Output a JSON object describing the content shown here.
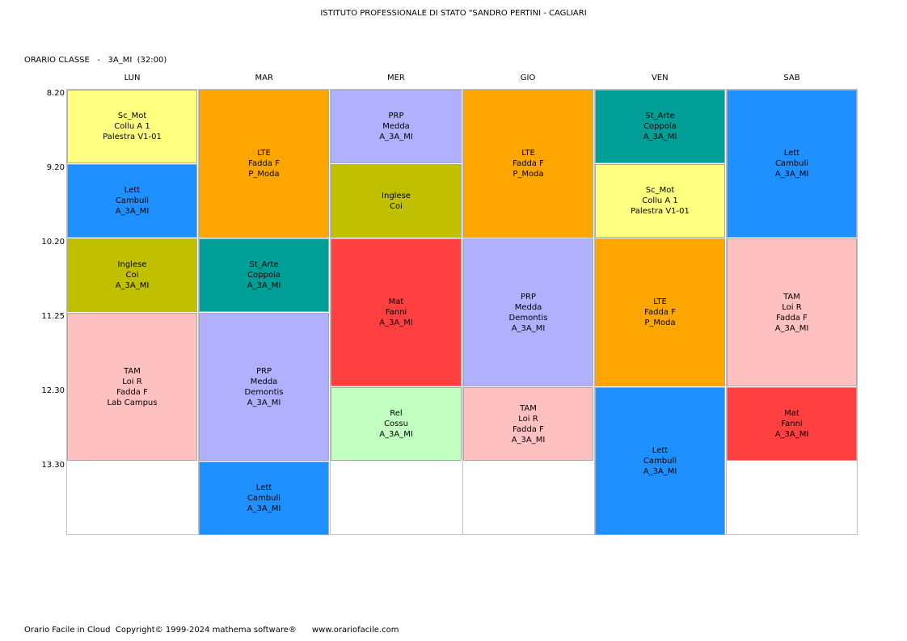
{
  "school_title": "ISTITUTO PROFESSIONALE DI STATO \"SANDRO PERTINI - CAGLIARI",
  "class_header": "ORARIO CLASSE   -   3A_MI  (32:00)",
  "days": [
    "LUN",
    "MAR",
    "MER",
    "GIO",
    "VEN",
    "SAB"
  ],
  "times": [
    "8.20",
    "9.20",
    "10.20",
    "11.25",
    "12.30",
    "13.30"
  ],
  "colors": {
    "Sc_Mot": "#ffff80",
    "Lett": "#1e90ff",
    "Inglese": "#c0c000",
    "TAM": "#ffc0c0",
    "LTE": "#ffa500",
    "St_Arte": "#009e96",
    "PRP": "#b0b0ff",
    "Mat": "#ff4040",
    "Rel": "#c0ffc0"
  },
  "lessons": [
    {
      "day": 0,
      "start": 0,
      "span": 1,
      "subject": "Sc_Mot",
      "lines": [
        "Sc_Mot",
        "Collu A 1",
        "Palestra V1-01"
      ]
    },
    {
      "day": 0,
      "start": 1,
      "span": 1,
      "subject": "Lett",
      "lines": [
        "Lett",
        "Cambuli",
        "A_3A_MI"
      ]
    },
    {
      "day": 0,
      "start": 2,
      "span": 1,
      "subject": "Inglese",
      "lines": [
        "Inglese",
        "Coi",
        "A_3A_MI"
      ]
    },
    {
      "day": 0,
      "start": 3,
      "span": 2,
      "subject": "TAM",
      "lines": [
        "TAM",
        "Loi R",
        "Fadda F",
        "Lab Campus"
      ]
    },
    {
      "day": 1,
      "start": 0,
      "span": 2,
      "subject": "LTE",
      "lines": [
        "LTE",
        "Fadda F",
        "P_Moda"
      ]
    },
    {
      "day": 1,
      "start": 2,
      "span": 1,
      "subject": "St_Arte",
      "lines": [
        "St_Arte",
        "Coppola",
        "A_3A_MI"
      ]
    },
    {
      "day": 1,
      "start": 3,
      "span": 2,
      "subject": "PRP",
      "lines": [
        "PRP",
        "Medda",
        "Demontis",
        "A_3A_MI"
      ]
    },
    {
      "day": 1,
      "start": 5,
      "span": 1,
      "subject": "Lett",
      "lines": [
        "Lett",
        "Cambuli",
        "A_3A_MI"
      ]
    },
    {
      "day": 2,
      "start": 0,
      "span": 1,
      "subject": "PRP",
      "lines": [
        "PRP",
        "Medda",
        "A_3A_MI"
      ]
    },
    {
      "day": 2,
      "start": 1,
      "span": 1,
      "subject": "Inglese",
      "lines": [
        "Inglese",
        "Coi"
      ]
    },
    {
      "day": 2,
      "start": 2,
      "span": 2,
      "subject": "Mat",
      "lines": [
        "Mat",
        "Fanni",
        "A_3A_MI"
      ]
    },
    {
      "day": 2,
      "start": 4,
      "span": 1,
      "subject": "Rel",
      "lines": [
        "Rel",
        "Cossu",
        "A_3A_MI"
      ]
    },
    {
      "day": 3,
      "start": 0,
      "span": 2,
      "subject": "LTE",
      "lines": [
        "LTE",
        "Fadda F",
        "P_Moda"
      ]
    },
    {
      "day": 3,
      "start": 2,
      "span": 2,
      "subject": "PRP",
      "lines": [
        "PRP",
        "Medda",
        "Demontis",
        "A_3A_MI"
      ]
    },
    {
      "day": 3,
      "start": 4,
      "span": 1,
      "subject": "TAM",
      "lines": [
        "TAM",
        "Loi R",
        "Fadda F",
        "A_3A_MI"
      ]
    },
    {
      "day": 4,
      "start": 0,
      "span": 1,
      "subject": "St_Arte",
      "lines": [
        "St_Arte",
        "Coppola",
        "A_3A_MI"
      ]
    },
    {
      "day": 4,
      "start": 1,
      "span": 1,
      "subject": "Sc_Mot",
      "lines": [
        "Sc_Mot",
        "Collu A 1",
        "Palestra V1-01"
      ]
    },
    {
      "day": 4,
      "start": 2,
      "span": 2,
      "subject": "LTE",
      "lines": [
        "LTE",
        "Fadda F",
        "P_Moda"
      ]
    },
    {
      "day": 4,
      "start": 4,
      "span": 2,
      "subject": "Lett",
      "lines": [
        "Lett",
        "Cambuli",
        "A_3A_MI"
      ]
    },
    {
      "day": 5,
      "start": 0,
      "span": 2,
      "subject": "Lett",
      "lines": [
        "Lett",
        "Cambuli",
        "A_3A_MI"
      ]
    },
    {
      "day": 5,
      "start": 2,
      "span": 2,
      "subject": "TAM",
      "lines": [
        "TAM",
        "Loi R",
        "Fadda F",
        "A_3A_MI"
      ]
    },
    {
      "day": 5,
      "start": 4,
      "span": 1,
      "subject": "Mat",
      "lines": [
        "Mat",
        "Fanni",
        "A_3A_MI"
      ]
    }
  ],
  "footer": "Orario Facile in Cloud  Copyright© 1999-2024 mathema software®      www.orariofacile.com"
}
